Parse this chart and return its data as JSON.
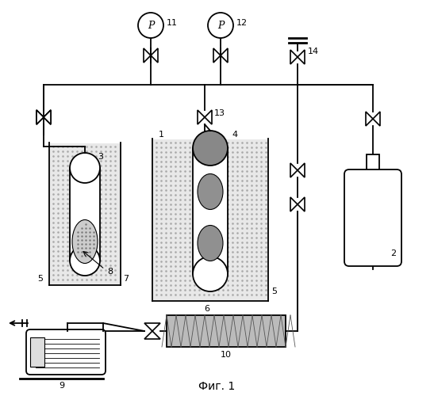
{
  "title": "Фиг. 1",
  "bg": "#ffffff",
  "lc": "#000000",
  "fig_w": 5.47,
  "fig_h": 5.0,
  "dpi": 100
}
